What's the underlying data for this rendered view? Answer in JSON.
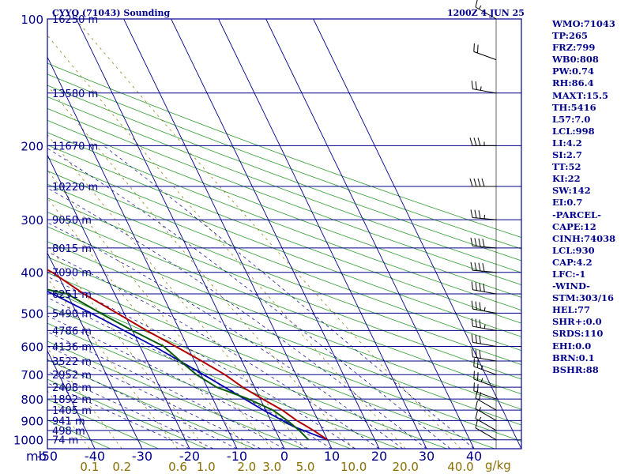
{
  "header": {
    "station": "CYYQ (71043) Sounding",
    "time": "1200Z  4 JUN 25"
  },
  "colors": {
    "isobar": "#00008b",
    "isotherm": "#00008b",
    "dry_adiabat": "#2e9b2e",
    "moist_adiabat": "#00008b",
    "mixing_ratio": "#8b6f00",
    "temperature": "#b00000",
    "dewpoint": "#0a5a0a",
    "parcel": "#0000b0",
    "wind": "#000000",
    "text": "#00008b"
  },
  "chart_data": {
    "type": "skew-t",
    "pressure_unit": "mb",
    "pressure_levels": [
      100,
      200,
      300,
      400,
      500,
      600,
      700,
      800,
      900,
      1000
    ],
    "height_labels": [
      {
        "p": 100,
        "text": "16250 m"
      },
      {
        "p": 150,
        "text": "13580 m"
      },
      {
        "p": 200,
        "text": "11670 m"
      },
      {
        "p": 250,
        "text": "10220 m"
      },
      {
        "p": 300,
        "text": "9050 m"
      },
      {
        "p": 350,
        "text": "8015 m"
      },
      {
        "p": 400,
        "text": "7090 m"
      },
      {
        "p": 450,
        "text": "6251 m"
      },
      {
        "p": 500,
        "text": "5490 m"
      },
      {
        "p": 550,
        "text": "4786 m"
      },
      {
        "p": 600,
        "text": "4136 m"
      },
      {
        "p": 650,
        "text": "3522 m"
      },
      {
        "p": 700,
        "text": "2952 m"
      },
      {
        "p": 750,
        "text": "2408 m"
      },
      {
        "p": 800,
        "text": "1892 m"
      },
      {
        "p": 850,
        "text": "1405 m"
      },
      {
        "p": 900,
        "text": "941 m"
      },
      {
        "p": 950,
        "text": "498 m"
      },
      {
        "p": 1000,
        "text": "74 m"
      }
    ],
    "temperature_ticks": [
      -50,
      -40,
      -30,
      -20,
      -10,
      0,
      10,
      20,
      30,
      40
    ],
    "temperature_tick_labels": [
      "-50",
      "-40",
      "-30",
      "-20",
      "-10",
      "0",
      "10",
      "20",
      "30",
      "40"
    ],
    "mixing_ratio_labels": [
      "0.1",
      "0.2",
      "0.6",
      "1.0",
      "2.0",
      "3.0",
      "5.0",
      "10.0",
      "20.0",
      "40.0"
    ],
    "mixing_ratio_values": [
      0.1,
      0.2,
      0.6,
      1.0,
      2.0,
      3.0,
      5.0,
      10.0,
      20.0,
      40.0
    ],
    "mixing_ratio_unit": "g/kg",
    "temperature_range": [
      -50,
      50
    ],
    "pressure_range": [
      100,
      1050
    ],
    "temperature": [
      {
        "p": 1000,
        "t": 10.0
      },
      {
        "p": 950,
        "t": 8.0
      },
      {
        "p": 900,
        "t": 5.5
      },
      {
        "p": 850,
        "t": 3.5
      },
      {
        "p": 800,
        "t": 0.5
      },
      {
        "p": 750,
        "t": -2.5
      },
      {
        "p": 700,
        "t": -5.0
      },
      {
        "p": 650,
        "t": -8.5
      },
      {
        "p": 600,
        "t": -12.5
      },
      {
        "p": 550,
        "t": -17.0
      },
      {
        "p": 500,
        "t": -21.5
      },
      {
        "p": 450,
        "t": -26.5
      },
      {
        "p": 400,
        "t": -31.0
      },
      {
        "p": 350,
        "t": -38.0
      },
      {
        "p": 300,
        "t": -45.5
      },
      {
        "p": 250,
        "t": -52.5
      },
      {
        "p": 200,
        "t": -52.0
      },
      {
        "p": 175,
        "t": -52.0
      },
      {
        "p": 150,
        "t": -55.0
      },
      {
        "p": 125,
        "t": -57.0
      },
      {
        "p": 100,
        "t": -56.0
      }
    ],
    "dewpoint": [
      {
        "p": 1000,
        "t": 6.0
      },
      {
        "p": 950,
        "t": 5.0
      },
      {
        "p": 900,
        "t": 3.5
      },
      {
        "p": 850,
        "t": 1.5
      },
      {
        "p": 800,
        "t": -2.5
      },
      {
        "p": 750,
        "t": -8.0
      },
      {
        "p": 700,
        "t": -11.0
      },
      {
        "p": 650,
        "t": -13.0
      },
      {
        "p": 600,
        "t": -15.0
      },
      {
        "p": 550,
        "t": -20.0
      },
      {
        "p": 500,
        "t": -25.0
      },
      {
        "p": 450,
        "t": -30.0
      },
      {
        "p": 420,
        "t": -41.0
      },
      {
        "p": 400,
        "t": -50.0
      },
      {
        "p": 350,
        "t": -48.0
      },
      {
        "p": 320,
        "t": -55.0
      },
      {
        "p": 300,
        "t": -57.0
      },
      {
        "p": 250,
        "t": -63.0
      },
      {
        "p": 200,
        "t": -66.0
      },
      {
        "p": 150,
        "t": -70.0
      },
      {
        "p": 125,
        "t": -75.0
      },
      {
        "p": 100,
        "t": -78.0
      }
    ],
    "parcel": [
      {
        "p": 1000,
        "t": 10.0
      },
      {
        "p": 930,
        "t": 4.2
      },
      {
        "p": 850,
        "t": -0.5
      },
      {
        "p": 700,
        "t": -9.5
      },
      {
        "p": 600,
        "t": -17.0
      },
      {
        "p": 500,
        "t": -27.0
      },
      {
        "p": 400,
        "t": -40.0
      },
      {
        "p": 300,
        "t": -57.0
      },
      {
        "p": 250,
        "t": -68.0
      },
      {
        "p": 200,
        "t": -80.0
      },
      {
        "p": 150,
        "t": -95.0
      },
      {
        "p": 120,
        "t": -107.0
      }
    ],
    "wind": [
      {
        "p": 1000,
        "dir": 300,
        "kt": 10
      },
      {
        "p": 950,
        "dir": 300,
        "kt": 15
      },
      {
        "p": 900,
        "dir": 300,
        "kt": 15
      },
      {
        "p": 850,
        "dir": 300,
        "kt": 20
      },
      {
        "p": 800,
        "dir": 290,
        "kt": 20
      },
      {
        "p": 750,
        "dir": 290,
        "kt": 25
      },
      {
        "p": 700,
        "dir": 290,
        "kt": 25
      },
      {
        "p": 650,
        "dir": 280,
        "kt": 30
      },
      {
        "p": 600,
        "dir": 280,
        "kt": 30
      },
      {
        "p": 550,
        "dir": 280,
        "kt": 35
      },
      {
        "p": 500,
        "dir": 280,
        "kt": 35
      },
      {
        "p": 450,
        "dir": 280,
        "kt": 40
      },
      {
        "p": 400,
        "dir": 275,
        "kt": 40
      },
      {
        "p": 350,
        "dir": 275,
        "kt": 40
      },
      {
        "p": 300,
        "dir": 275,
        "kt": 35
      },
      {
        "p": 250,
        "dir": 270,
        "kt": 40
      },
      {
        "p": 200,
        "dir": 270,
        "kt": 35
      },
      {
        "p": 150,
        "dir": 280,
        "kt": 25
      },
      {
        "p": 125,
        "dir": 290,
        "kt": 20
      },
      {
        "p": 100,
        "dir": 300,
        "kt": 15
      }
    ]
  },
  "indices": [
    "WMO:71043",
    "TP:265",
    "FRZ:799",
    "WB0:808",
    "PW:0.74",
    "RH:86.4",
    "MAXT:15.5",
    "TH:5416",
    "L57:7.0",
    "LCL:998",
    "LI:4.2",
    "SI:2.7",
    "TT:52",
    "KI:22",
    "SW:142",
    "EI:0.7",
    "-PARCEL-",
    "CAPE:12",
    "CINH:74038",
    "LCL:930",
    "CAP:4.2",
    "LFC:-1",
    "-WIND-",
    "STM:303/16",
    "HEL:77",
    "SHR+:0.0",
    "SRDS:110",
    "EHI:0.0",
    "BRN:0.1",
    "BSHR:88"
  ]
}
